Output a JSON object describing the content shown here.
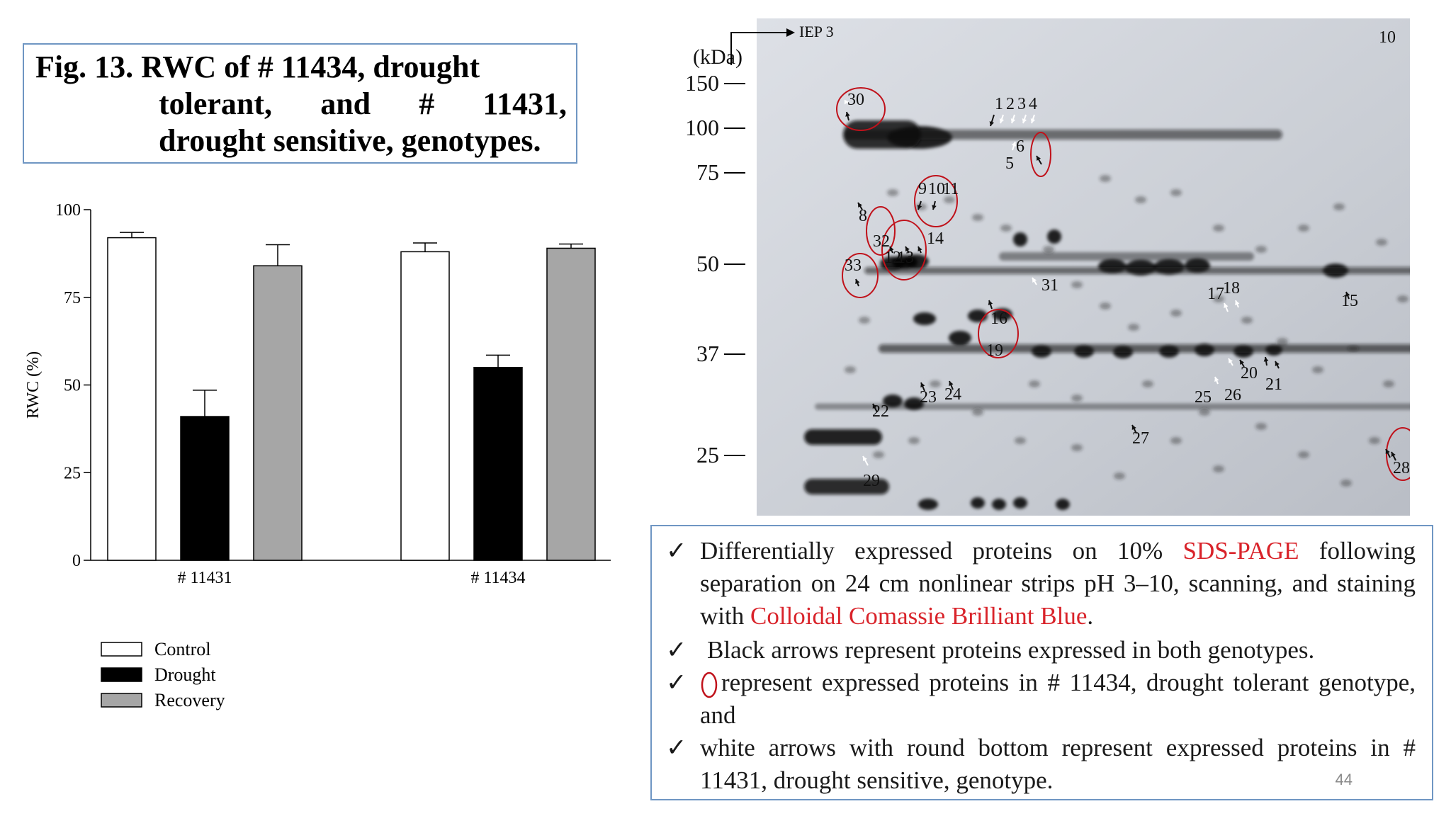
{
  "figure_title": {
    "line1": "Fig.  13.  RWC  of  #  11434,  drought",
    "line2_a": "tolerant,",
    "line2_b": "and",
    "line2_c": "#",
    "line2_d": "11431,",
    "line3": "drought sensitive, genotypes."
  },
  "chart_data": {
    "type": "bar",
    "ylabel": "RWC (%)",
    "ylim": [
      0,
      100
    ],
    "yticks": [
      "0",
      "25",
      "50",
      "75",
      "100"
    ],
    "categories": [
      "# 11431",
      "# 11434"
    ],
    "series": [
      {
        "name": "Control",
        "values": [
          92,
          88
        ],
        "errors": [
          1.5,
          2.5
        ],
        "color": "#ffffff"
      },
      {
        "name": "Drought",
        "values": [
          41,
          55
        ],
        "errors": [
          7.5,
          3.5
        ],
        "color": "#000000"
      },
      {
        "name": "Recovery",
        "values": [
          84,
          89
        ],
        "errors": [
          6,
          1.2
        ],
        "color": "#a6a6a6"
      }
    ],
    "legend_position": "bottom-left"
  },
  "gel": {
    "mw_unit": "(kDa)",
    "iep_label": "IEP 3",
    "corner_label": "10",
    "mw_markers": [
      "150",
      "100",
      "75",
      "50",
      "37",
      "25"
    ],
    "spot_numbers": [
      "1",
      "2",
      "3",
      "4",
      "5",
      "6",
      "8",
      "9",
      "10",
      "11",
      "12",
      "13",
      "14",
      "15",
      "16",
      "17",
      "18",
      "19",
      "20",
      "21",
      "22",
      "23",
      "24",
      "25",
      "26",
      "27",
      "28",
      "29",
      "30",
      "31",
      "32",
      "33"
    ],
    "colors": {
      "circle": "#c0121b",
      "background": "#c7cbd2",
      "spot": "#101010"
    }
  },
  "notes": {
    "n1_a": "Differentially expressed proteins on 10% ",
    "n1_red1": "SDS-PAGE",
    "n1_b": " following separation on 24 cm nonlinear strips pH 3–10, scanning, and staining with ",
    "n1_red2": "Colloidal Comassie Brilliant Blue",
    "n1_c": ".",
    "n2": "Black arrows represent proteins expressed in both genotypes.",
    "n3": "represent expressed proteins in # 11434, drought tolerant genotype, and",
    "n4": "white arrows with round bottom represent expressed proteins in # 11431, drought sensitive, genotype.",
    "check": "✓"
  },
  "page_number": "44"
}
